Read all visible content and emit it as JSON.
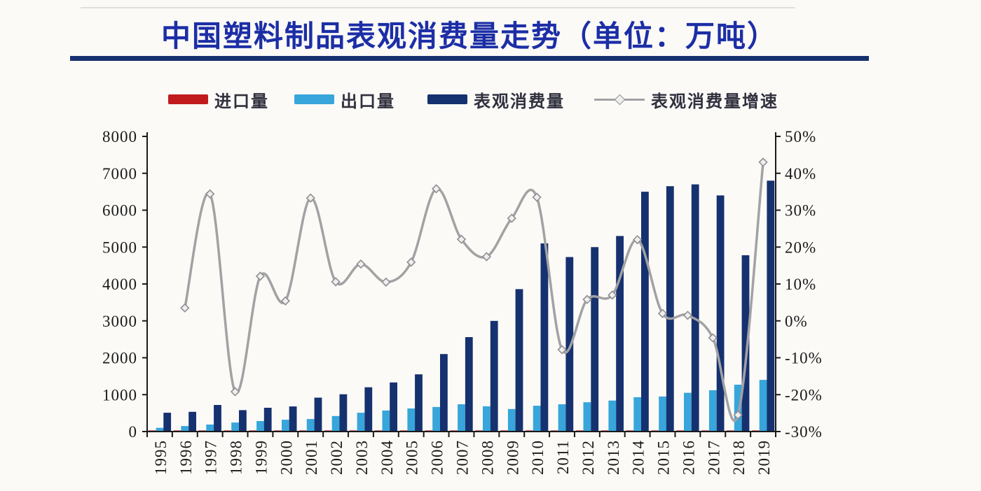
{
  "header": {
    "title": "中国塑料制品表观消费量走势（单位：万吨）",
    "title_color": "#1c2ea6",
    "underline_color": "#16316f"
  },
  "legend": {
    "position": "top",
    "items": [
      {
        "key": "imports",
        "swatch": "bar",
        "color": "#c11b1e"
      },
      {
        "key": "exports",
        "swatch": "bar",
        "color": "#38a5db"
      },
      {
        "key": "consumption",
        "swatch": "bar",
        "color": "#16316f"
      },
      {
        "key": "growth",
        "swatch": "line-with-diamond-marker",
        "color": "#a2a2a4"
      }
    ]
  },
  "chart_data": {
    "type": "bar",
    "subtype": "combo-bar-line-dual-axis",
    "title": "中国塑料制品表观消费量走势（单位：万吨）",
    "categories": [
      "1995",
      "1996",
      "1997",
      "1998",
      "1999",
      "2000",
      "2001",
      "2002",
      "2003",
      "2004",
      "2005",
      "2006",
      "2007",
      "2008",
      "2009",
      "2010",
      "2011",
      "2012",
      "2013",
      "2014",
      "2015",
      "2016",
      "2017",
      "2018",
      "2019"
    ],
    "series": [
      {
        "key": "imports",
        "name": "进口量",
        "type": "bar",
        "axis": "left",
        "color": "#c11b1e",
        "values": [
          30,
          30,
          30,
          30,
          30,
          30,
          30,
          30,
          30,
          30,
          30,
          30,
          30,
          30,
          30,
          30,
          30,
          30,
          30,
          30,
          30,
          30,
          30,
          30,
          30
        ]
      },
      {
        "key": "exports",
        "name": "出口量",
        "type": "bar",
        "axis": "left",
        "color": "#38a5db",
        "values": [
          100,
          150,
          190,
          245,
          285,
          320,
          340,
          420,
          510,
          570,
          625,
          665,
          740,
          685,
          610,
          700,
          740,
          795,
          840,
          930,
          950,
          1050,
          1120,
          1270,
          1400
        ]
      },
      {
        "key": "consumption",
        "name": "表观消费量",
        "type": "bar",
        "axis": "left",
        "color": "#16316f",
        "values": [
          510,
          535,
          720,
          580,
          645,
          680,
          920,
          1010,
          1200,
          1330,
          1550,
          2100,
          2560,
          3000,
          3860,
          5100,
          4730,
          5000,
          5300,
          6500,
          6650,
          6700,
          6400,
          4780,
          6800
        ]
      },
      {
        "key": "growth",
        "name": "表观消费量增速",
        "type": "line",
        "axis": "right",
        "color": "#a2a2a4",
        "marker": "diamond",
        "smooth": true,
        "values": [
          null,
          3.5,
          34.4,
          -19.2,
          12.1,
          5.4,
          33.3,
          10.6,
          15.4,
          10.5,
          15.9,
          35.8,
          22.1,
          17.4,
          27.8,
          33.5,
          -7.8,
          5.8,
          7,
          22,
          2,
          1.5,
          -4.6,
          -25.5,
          43
        ]
      }
    ],
    "left_axis": {
      "min": 0,
      "max": 8000,
      "step": 1000,
      "suffix": ""
    },
    "right_axis": {
      "min": -30,
      "max": 50,
      "step": 10,
      "suffix": "%"
    },
    "grid": false,
    "legend_position": "top",
    "x_labels_rotation": -90
  }
}
